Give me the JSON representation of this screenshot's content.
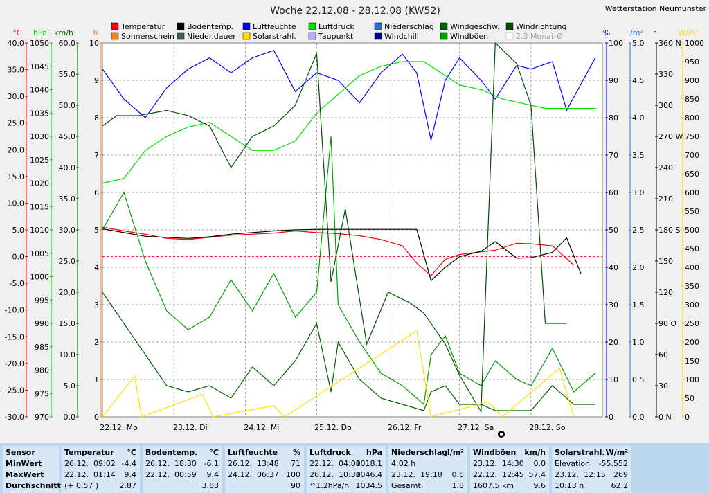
{
  "station": "Wetterstation Neumünster",
  "chart_data": {
    "type": "line",
    "title": "Woche 22.12.08 - 28.12.08 (KW52)",
    "x_categories": [
      "22.12. Mo",
      "23.12. Di",
      "24.12. Mi",
      "25.12. Do",
      "26.12. Fr",
      "27.12. Sa",
      "28.12. So"
    ],
    "legend": [
      {
        "name": "Temperatur",
        "color": "#ff0000"
      },
      {
        "name": "Bodentemp.",
        "color": "#000000"
      },
      {
        "name": "Luftfeuchte",
        "color": "#0000ff"
      },
      {
        "name": "Luftdruck",
        "color": "#00e000"
      },
      {
        "name": "Niederschlag",
        "color": "#1e78e0"
      },
      {
        "name": "Windgeschw.",
        "color": "#006000"
      },
      {
        "name": "Windrichtung",
        "color": "#005000"
      },
      {
        "name": "Sonnenschein",
        "color": "#ff7f27"
      },
      {
        "name": "Nieder.dauer",
        "color": "#406060"
      },
      {
        "name": "Solarstrahl.",
        "color": "#ffe000"
      },
      {
        "name": "Taupunkt",
        "color": "#b0b0ff"
      },
      {
        "name": "Windchill",
        "color": "#000090"
      },
      {
        "name": "Windböen",
        "color": "#00a000"
      },
      {
        "name": "2.3 Monat-Ø",
        "color": "#b0b0b0"
      }
    ],
    "axes": {
      "temp": {
        "unit": "°C",
        "color": "#ff0000",
        "ticks": [
          "40.0",
          "35.0",
          "30.0",
          "25.0",
          "20.0",
          "15.0",
          "10.0",
          "5.0",
          "0.0",
          "-5.0",
          "-10.0",
          "-15.0",
          "-20.0",
          "-25.0",
          "-30.0"
        ],
        "range": [
          -30,
          40
        ]
      },
      "pressure": {
        "unit": "hPa",
        "color": "#00c000",
        "ticks": [
          "1050",
          "1045",
          "1040",
          "1035",
          "1030",
          "1025",
          "1020",
          "1015",
          "1010",
          "1005",
          "1000",
          "995",
          "990",
          "985",
          "980",
          "975",
          "970"
        ],
        "range": [
          970,
          1050
        ]
      },
      "wind": {
        "unit": "km/h",
        "color": "#006000",
        "ticks": [
          "60.0",
          "55.0",
          "50.0",
          "45.0",
          "40.0",
          "35.0",
          "30.0",
          "25.0",
          "20.0",
          "15.0",
          "10.0",
          "5.0",
          "0.0"
        ],
        "range": [
          0,
          60
        ]
      },
      "hours": {
        "unit": "h",
        "color": "#ff7f27",
        "ticks": [
          "10",
          "9",
          "8",
          "7",
          "6",
          "5",
          "4",
          "3",
          "2",
          "1",
          "0"
        ],
        "range": [
          0,
          10
        ]
      },
      "humidity": {
        "unit": "%",
        "color": "#0000c0",
        "ticks": [
          "100",
          "90",
          "80",
          "70",
          "60",
          "50",
          "40",
          "30",
          "20",
          "10",
          "0"
        ],
        "range": [
          0,
          100
        ]
      },
      "rain": {
        "unit": "l/m²",
        "color": "#1e78e0",
        "ticks": [
          "5.0",
          "4.5",
          "4.0",
          "3.5",
          "3.0",
          "2.5",
          "2.0",
          "1.5",
          "1.0",
          "0.5",
          "0.0"
        ],
        "range": [
          0,
          5
        ]
      },
      "direction": {
        "unit": "°",
        "color": "#000000",
        "ticks": [
          "360 N",
          "330",
          "300",
          "270 W",
          "240",
          "210",
          "180 S",
          "150",
          "120",
          "90 O",
          "60",
          "30",
          "0 N"
        ],
        "range": [
          0,
          360
        ]
      },
      "solar": {
        "unit": "W/m²",
        "color": "#ffd700",
        "ticks": [
          "1000",
          "950",
          "900",
          "850",
          "800",
          "750",
          "700",
          "650",
          "600",
          "550",
          "500",
          "450",
          "400",
          "350",
          "300",
          "250",
          "200",
          "150",
          "100",
          "50",
          "0"
        ],
        "range": [
          0,
          1000
        ]
      }
    },
    "series": [
      {
        "name": "Temperatur",
        "points": [
          [
            0,
            5.5
          ],
          [
            0.3,
            4.8
          ],
          [
            0.6,
            4.2
          ],
          [
            0.9,
            3.4
          ],
          [
            1.2,
            3.2
          ],
          [
            1.5,
            3.6
          ],
          [
            1.8,
            4.0
          ],
          [
            2.1,
            4.2
          ],
          [
            2.4,
            4.4
          ],
          [
            2.7,
            4.8
          ],
          [
            3.0,
            4.5
          ],
          [
            3.3,
            4.3
          ],
          [
            3.6,
            3.9
          ],
          [
            3.9,
            3.2
          ],
          [
            4.2,
            2.0
          ],
          [
            4.4,
            -1.2
          ],
          [
            4.6,
            -3.6
          ],
          [
            4.8,
            -0.5
          ],
          [
            5.0,
            0.4
          ],
          [
            5.3,
            0.9
          ],
          [
            5.5,
            1.2
          ],
          [
            5.8,
            2.5
          ],
          [
            6.0,
            2.4
          ],
          [
            6.3,
            2.0
          ],
          [
            6.6,
            -1.6
          ]
        ]
      },
      {
        "name": "Bodentemp.",
        "points": [
          [
            0,
            5.2
          ],
          [
            0.3,
            4.5
          ],
          [
            0.6,
            3.8
          ],
          [
            0.9,
            3.6
          ],
          [
            1.2,
            3.4
          ],
          [
            1.5,
            3.7
          ],
          [
            1.8,
            4.2
          ],
          [
            2.1,
            4.5
          ],
          [
            2.4,
            4.8
          ],
          [
            2.7,
            5.0
          ],
          [
            3.0,
            5.1
          ],
          [
            3.3,
            5.1
          ],
          [
            3.6,
            5.1
          ],
          [
            3.9,
            5.1
          ],
          [
            4.4,
            5.1
          ],
          [
            4.6,
            -4.5
          ],
          [
            4.8,
            -2.0
          ],
          [
            5.0,
            0.0
          ],
          [
            5.3,
            1.0
          ],
          [
            5.5,
            2.8
          ],
          [
            5.8,
            -0.3
          ],
          [
            6.0,
            -0.2
          ],
          [
            6.3,
            0.8
          ],
          [
            6.5,
            3.5
          ],
          [
            6.7,
            -3.2
          ]
        ]
      },
      {
        "name": "Luftfeuchte",
        "points": [
          [
            0,
            93
          ],
          [
            0.3,
            85
          ],
          [
            0.6,
            80
          ],
          [
            0.9,
            88
          ],
          [
            1.2,
            93
          ],
          [
            1.5,
            96
          ],
          [
            1.8,
            92
          ],
          [
            2.1,
            96
          ],
          [
            2.4,
            98
          ],
          [
            2.7,
            87
          ],
          [
            3.0,
            92
          ],
          [
            3.3,
            90
          ],
          [
            3.6,
            84
          ],
          [
            3.9,
            92
          ],
          [
            4.2,
            97
          ],
          [
            4.4,
            92
          ],
          [
            4.6,
            74
          ],
          [
            4.8,
            90
          ],
          [
            5.0,
            96
          ],
          [
            5.3,
            90
          ],
          [
            5.5,
            85
          ],
          [
            5.8,
            94
          ],
          [
            6.0,
            93
          ],
          [
            6.3,
            95
          ],
          [
            6.5,
            82
          ],
          [
            6.9,
            96
          ]
        ]
      },
      {
        "name": "Luftdruck",
        "points": [
          [
            0,
            1020
          ],
          [
            0.3,
            1021
          ],
          [
            0.6,
            1027
          ],
          [
            0.9,
            1030
          ],
          [
            1.2,
            1032
          ],
          [
            1.5,
            1033
          ],
          [
            1.8,
            1030
          ],
          [
            2.1,
            1027
          ],
          [
            2.4,
            1027
          ],
          [
            2.7,
            1029
          ],
          [
            3.0,
            1035
          ],
          [
            3.3,
            1039
          ],
          [
            3.6,
            1043
          ],
          [
            3.9,
            1045
          ],
          [
            4.2,
            1046
          ],
          [
            4.5,
            1046
          ],
          [
            4.8,
            1043
          ],
          [
            5.0,
            1041
          ],
          [
            5.3,
            1040
          ],
          [
            5.6,
            1038
          ],
          [
            5.9,
            1037
          ],
          [
            6.2,
            1036
          ],
          [
            6.5,
            1036
          ],
          [
            6.9,
            1036
          ]
        ]
      },
      {
        "name": "Windgeschw.",
        "points": [
          [
            0,
            20
          ],
          [
            0.3,
            15
          ],
          [
            0.6,
            10
          ],
          [
            0.9,
            5
          ],
          [
            1.2,
            4
          ],
          [
            1.5,
            5
          ],
          [
            1.8,
            3
          ],
          [
            2.1,
            8
          ],
          [
            2.4,
            5
          ],
          [
            2.7,
            9
          ],
          [
            3.0,
            15
          ],
          [
            3.2,
            4
          ],
          [
            3.3,
            12
          ],
          [
            3.6,
            6
          ],
          [
            3.9,
            3
          ],
          [
            4.2,
            2
          ],
          [
            4.5,
            1
          ],
          [
            4.6,
            4
          ],
          [
            4.8,
            5
          ],
          [
            5.0,
            2
          ],
          [
            5.3,
            2
          ],
          [
            5.5,
            1
          ],
          [
            5.8,
            1
          ],
          [
            6.0,
            1
          ],
          [
            6.3,
            5
          ],
          [
            6.6,
            2
          ],
          [
            6.9,
            2
          ]
        ]
      },
      {
        "name": "Windböen",
        "points": [
          [
            0,
            30
          ],
          [
            0.3,
            36
          ],
          [
            0.6,
            25
          ],
          [
            0.9,
            17
          ],
          [
            1.2,
            14
          ],
          [
            1.5,
            16
          ],
          [
            1.8,
            22
          ],
          [
            2.1,
            17
          ],
          [
            2.4,
            23
          ],
          [
            2.7,
            16
          ],
          [
            3.0,
            20
          ],
          [
            3.2,
            45
          ],
          [
            3.3,
            18
          ],
          [
            3.6,
            12
          ],
          [
            3.9,
            7
          ],
          [
            4.2,
            5
          ],
          [
            4.5,
            2
          ],
          [
            4.6,
            10
          ],
          [
            4.8,
            13
          ],
          [
            5.0,
            7
          ],
          [
            5.3,
            5
          ],
          [
            5.5,
            9
          ],
          [
            5.8,
            6
          ],
          [
            6.0,
            5
          ],
          [
            6.3,
            11
          ],
          [
            6.6,
            4
          ],
          [
            6.9,
            7
          ]
        ]
      },
      {
        "name": "Windrichtung",
        "points": [
          [
            0,
            280
          ],
          [
            0.2,
            290
          ],
          [
            0.5,
            290
          ],
          [
            0.9,
            295
          ],
          [
            1.2,
            290
          ],
          [
            1.5,
            280
          ],
          [
            1.8,
            240
          ],
          [
            2.1,
            270
          ],
          [
            2.4,
            280
          ],
          [
            2.7,
            300
          ],
          [
            3.0,
            350
          ],
          [
            3.2,
            130
          ],
          [
            3.4,
            200
          ],
          [
            3.7,
            70
          ],
          [
            4.0,
            120
          ],
          [
            4.3,
            110
          ],
          [
            4.5,
            100
          ],
          [
            4.8,
            70
          ],
          [
            5.0,
            40
          ],
          [
            5.3,
            5
          ],
          [
            5.5,
            360
          ],
          [
            5.8,
            340
          ],
          [
            6.0,
            300
          ],
          [
            6.2,
            90
          ],
          [
            6.5,
            90
          ]
        ]
      },
      {
        "name": "Solarstrahl.",
        "points": [
          [
            0,
            0
          ],
          [
            0.45,
            110
          ],
          [
            0.55,
            0
          ],
          [
            1.4,
            60
          ],
          [
            1.55,
            0
          ],
          [
            2.4,
            30
          ],
          [
            2.55,
            0
          ],
          [
            4.4,
            230
          ],
          [
            4.6,
            0
          ],
          [
            5.4,
            40
          ],
          [
            5.6,
            0
          ],
          [
            6.4,
            130
          ],
          [
            6.6,
            0
          ]
        ]
      }
    ]
  },
  "stats": [
    {
      "header": "Sensor",
      "header_unit": "",
      "rows": [
        "MinWert",
        "MaxWert",
        "Durchschnitt"
      ]
    },
    {
      "header": "Temperatur",
      "header_unit": "°C",
      "rows": [
        {
          "d": "26.12.",
          "t": "09:02",
          "v": "-4.4"
        },
        {
          "d": "22.12.",
          "t": "01:14",
          "v": "9.4"
        },
        {
          "d": "(+ 0.57 )",
          "t": "",
          "v": "2.87"
        }
      ]
    },
    {
      "header": "Bodentemp.",
      "header_unit": "°C",
      "rows": [
        {
          "d": "26.12.",
          "t": "18:30",
          "v": "-6.1"
        },
        {
          "d": "22.12.",
          "t": "00:59",
          "v": "9.4"
        },
        {
          "d": "",
          "t": "",
          "v": "3.63"
        }
      ]
    },
    {
      "header": "Luftfeuchte",
      "header_unit": "%",
      "rows": [
        {
          "d": "26.12.",
          "t": "13:48",
          "v": "71"
        },
        {
          "d": "24.12.",
          "t": "06:37",
          "v": "100"
        },
        {
          "d": "",
          "t": "",
          "v": "90"
        }
      ]
    },
    {
      "header": "Luftdruck",
      "header_unit": "hPa",
      "rows": [
        {
          "d": "22.12.",
          "t": "04:00",
          "v": "1018.1"
        },
        {
          "d": "26.12.",
          "t": "10:30",
          "v": "1046.4"
        },
        {
          "d": "^1.2hPa/h",
          "t": "",
          "v": "1034.5"
        }
      ]
    },
    {
      "header": "Niederschlag",
      "header_unit": "l/m²",
      "rows": [
        {
          "d": "4:02 h",
          "t": "",
          "v": ""
        },
        {
          "d": "23.12.",
          "t": "19:18",
          "v": "0.6"
        },
        {
          "d": "Gesamt:",
          "t": "",
          "v": "1.8"
        }
      ]
    },
    {
      "header": "Windböen",
      "header_unit": "km/h",
      "rows": [
        {
          "d": "23.12.",
          "t": "14:30",
          "v": "0.0"
        },
        {
          "d": "22.12.",
          "t": "12:45",
          "v": "57.4"
        },
        {
          "d": "1607.5 km",
          "t": "",
          "v": "9.6"
        }
      ]
    },
    {
      "header": "Solarstrahl.",
      "header_unit": "W/m²",
      "rows": [
        {
          "d": "Elevation",
          "t": "",
          "v": "-55.552"
        },
        {
          "d": "23.12.",
          "t": "12:15",
          "v": "269"
        },
        {
          "d": "10:13 h",
          "t": "",
          "v": "62.2"
        }
      ]
    }
  ]
}
